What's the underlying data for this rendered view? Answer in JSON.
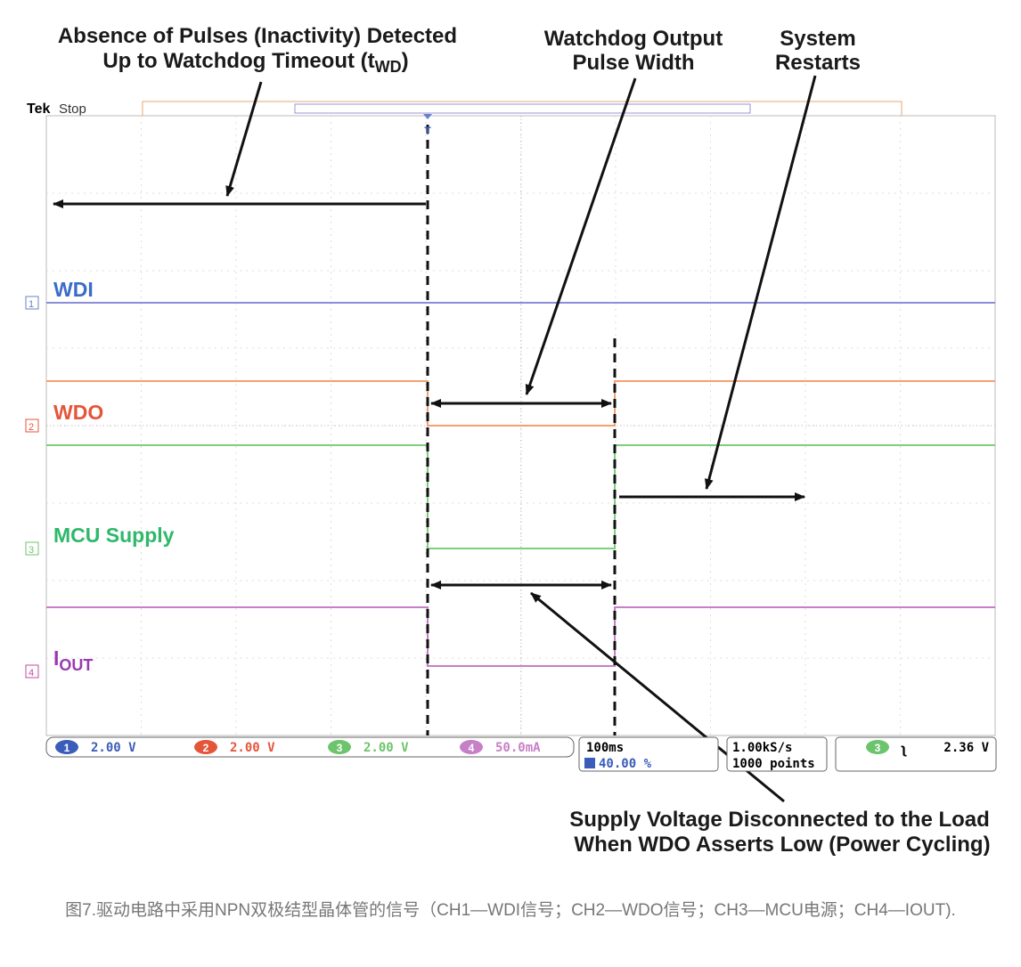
{
  "annotations": {
    "timeout": {
      "line1": "Absence of Pulses (Inactivity) Detected",
      "line2": "Up to Watchdog Timeout (t",
      "sub": "WD",
      "close": ")"
    },
    "pulse_width": {
      "line1": "Watchdog Output",
      "line2": "Pulse Width"
    },
    "restart": {
      "line1": "System",
      "line2": "Restarts"
    },
    "supply": {
      "line1": "Supply Voltage Disconnected to the Load",
      "line2": "When WDO Asserts Low (Power Cycling)"
    }
  },
  "scope": {
    "brand": "Tek",
    "state": "Stop",
    "trigger_marker": "T",
    "channels": [
      {
        "marker": "1",
        "label": "WDI",
        "scale": "2.00 V"
      },
      {
        "marker": "2",
        "label": "WDO",
        "scale": "2.00 V"
      },
      {
        "marker": "3",
        "label": "MCU Supply",
        "scale": "2.00 V"
      },
      {
        "marker": "4",
        "label": "I",
        "label_sub": "OUT",
        "scale": "50.0mA"
      }
    ],
    "timebase": "100ms",
    "trigger_position": "40.00 %",
    "sample_rate": "1.00kS/s",
    "record_length": "1000 points",
    "trigger_channel": "3",
    "trigger_level": "2.36 V"
  },
  "caption": "图7.驱动电路中采用NPN双极结型晶体管的信号（CH1—WDI信号；CH2—WDO信号；CH3—MCU电源；CH4—IOUT)."
}
